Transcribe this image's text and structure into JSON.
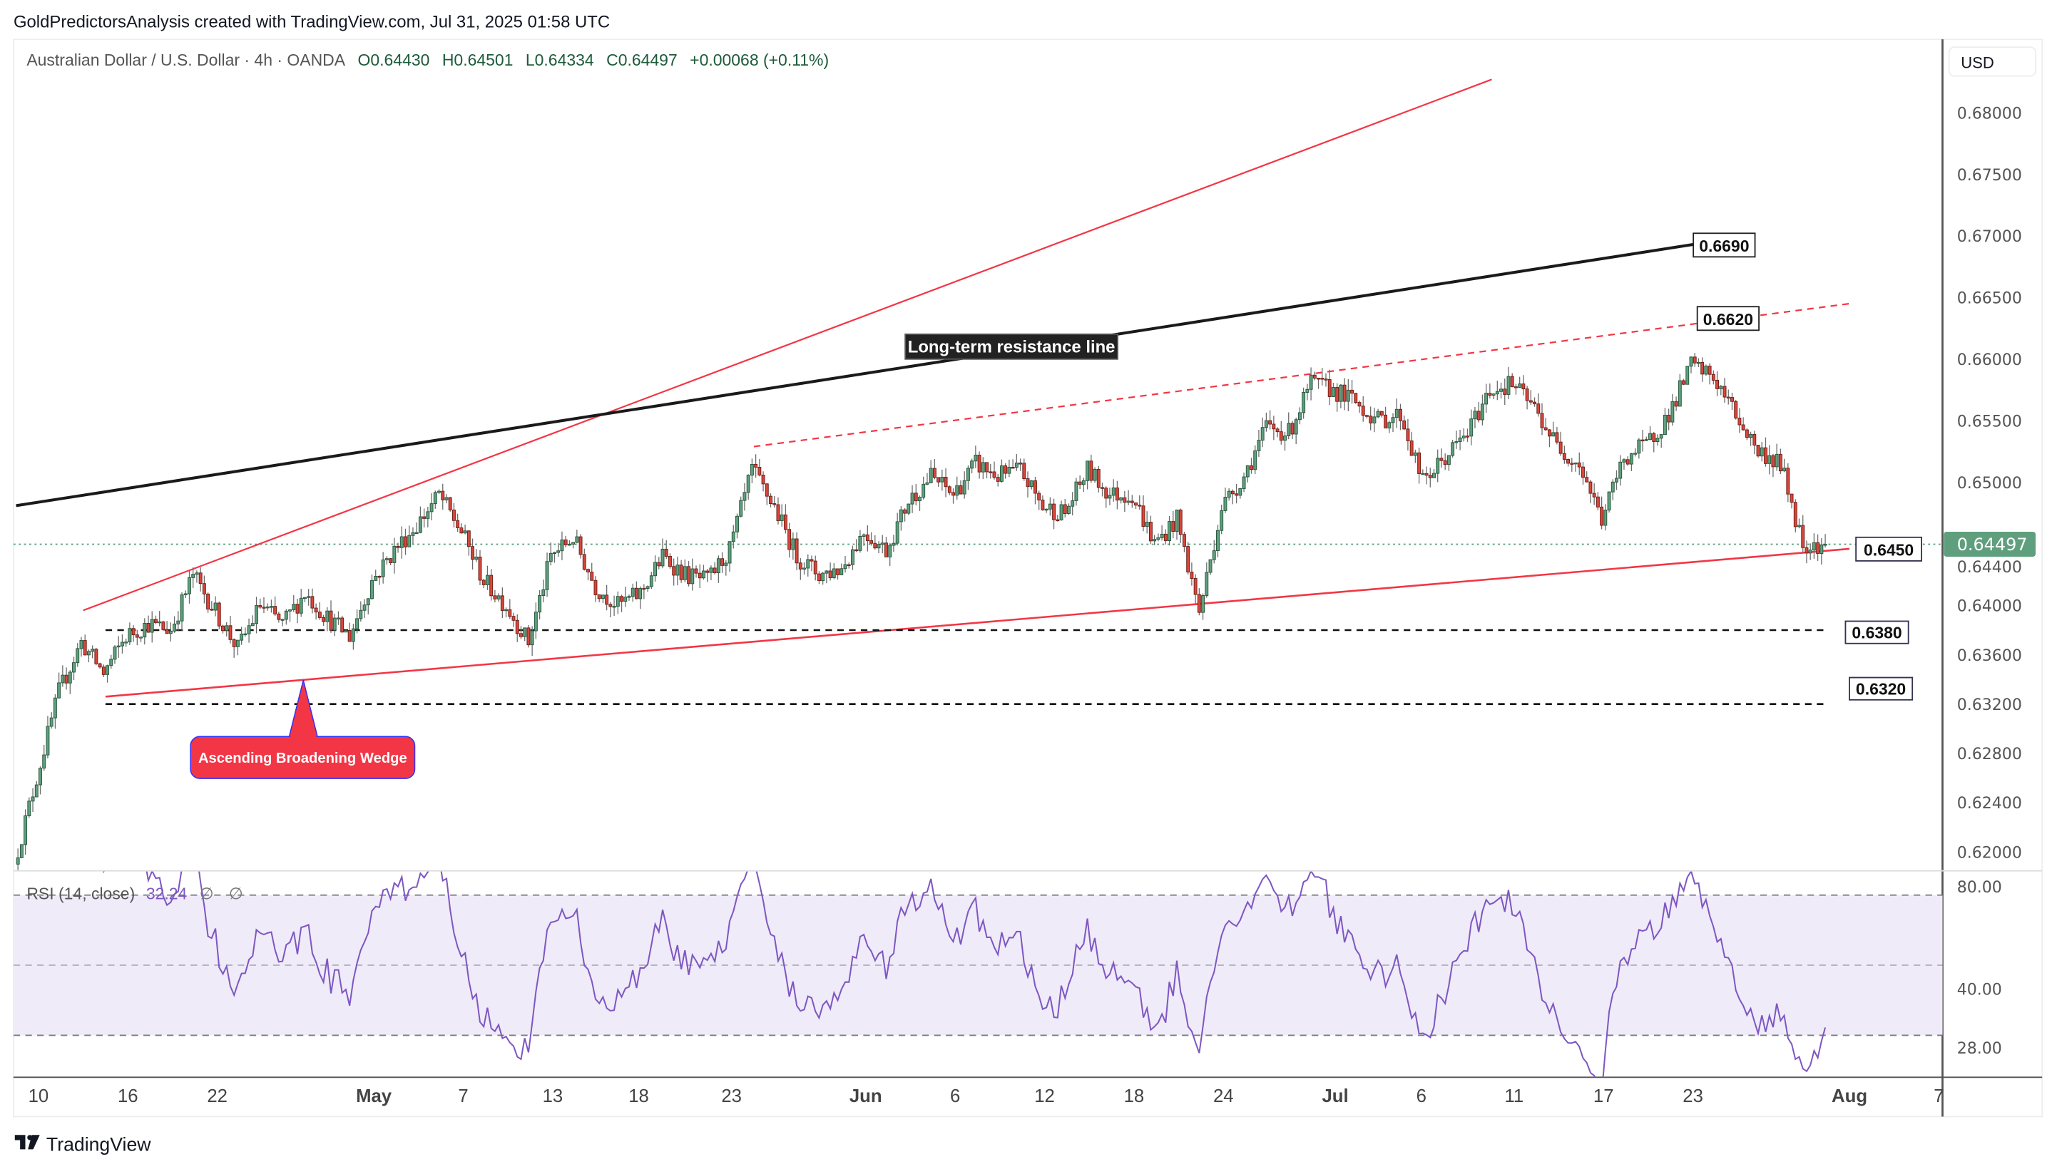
{
  "header": {
    "attribution": "GoldPredictorsAnalysis created with TradingView.com, Jul 31, 2025 01:58 UTC"
  },
  "footer": {
    "brand": "TradingView"
  },
  "legend": {
    "symbol": "Australian Dollar / U.S. Dollar · 4h · OANDA",
    "open": "O0.64430",
    "high": "H0.64501",
    "low": "L0.64334",
    "close": "C0.64497",
    "change": "+0.00068 (+0.11%)"
  },
  "rsi_legend": {
    "name": "RSI (14, close)",
    "value": "32.24",
    "extra1": "∅",
    "extra2": "∅"
  },
  "price_axis": {
    "currency": "USD",
    "ticks": [
      "0.68000",
      "0.67500",
      "0.67000",
      "0.66500",
      "0.66000",
      "0.65500",
      "0.65000",
      "0.64400",
      "0.64000",
      "0.63600",
      "0.63200",
      "0.62800",
      "0.62400",
      "0.62000"
    ],
    "current_price": "0.64497"
  },
  "rsi_axis": {
    "ticks": [
      "80.00",
      "40.00",
      "28.00"
    ]
  },
  "colors": {
    "up": "#5f9f7d",
    "up_border": "#24533a",
    "down": "#d8463b",
    "down_border": "#6a1c14",
    "rsi": "#7e57c2",
    "rsi_band": "#efebf8",
    "current": "#5f9f7d",
    "wedge": "#f23645"
  },
  "chart_data": {
    "type": "candlestick",
    "title": "Australian Dollar / U.S. Dollar · 4h · OANDA",
    "ylim": [
      0.6185,
      0.6835
    ],
    "x_ticks": [
      {
        "label": "10",
        "date": "2025-04-10"
      },
      {
        "label": "16",
        "date": "2025-04-16"
      },
      {
        "label": "22",
        "date": "2025-04-22"
      },
      {
        "label": "May",
        "date": "2025-05-01"
      },
      {
        "label": "7",
        "date": "2025-05-07"
      },
      {
        "label": "13",
        "date": "2025-05-13"
      },
      {
        "label": "18",
        "date": "2025-05-18"
      },
      {
        "label": "23",
        "date": "2025-05-23"
      },
      {
        "label": "Jun",
        "date": "2025-06-02"
      },
      {
        "label": "6",
        "date": "2025-06-06"
      },
      {
        "label": "12",
        "date": "2025-06-12"
      },
      {
        "label": "18",
        "date": "2025-06-18"
      },
      {
        "label": "24",
        "date": "2025-06-24"
      },
      {
        "label": "Jul",
        "date": "2025-07-01"
      },
      {
        "label": "6",
        "date": "2025-07-06"
      },
      {
        "label": "11",
        "date": "2025-07-11"
      },
      {
        "label": "17",
        "date": "2025-07-17"
      },
      {
        "label": "23",
        "date": "2025-07-23"
      },
      {
        "label": "Aug",
        "date": "2025-08-01"
      },
      {
        "label": "7",
        "date": "2025-08-07"
      }
    ],
    "close_path": [
      [
        "2025-04-09",
        0.619
      ],
      [
        "2025-04-10",
        0.626
      ],
      [
        "2025-04-11",
        0.633
      ],
      [
        "2025-04-14",
        0.637
      ],
      [
        "2025-04-15",
        0.6345
      ],
      [
        "2025-04-16",
        0.6375
      ],
      [
        "2025-04-17",
        0.6385
      ],
      [
        "2025-04-18",
        0.638
      ],
      [
        "2025-04-21",
        0.6425
      ],
      [
        "2025-04-22",
        0.6395
      ],
      [
        "2025-04-23",
        0.6365
      ],
      [
        "2025-04-24",
        0.64
      ],
      [
        "2025-04-25",
        0.6385
      ],
      [
        "2025-04-28",
        0.641
      ],
      [
        "2025-04-29",
        0.639
      ],
      [
        "2025-04-30",
        0.6375
      ],
      [
        "2025-05-01",
        0.642
      ],
      [
        "2025-05-02",
        0.6445
      ],
      [
        "2025-05-05",
        0.6465
      ],
      [
        "2025-05-06",
        0.649
      ],
      [
        "2025-05-07",
        0.646
      ],
      [
        "2025-05-08",
        0.642
      ],
      [
        "2025-05-09",
        0.64
      ],
      [
        "2025-05-12",
        0.637
      ],
      [
        "2025-05-13",
        0.644
      ],
      [
        "2025-05-14",
        0.6455
      ],
      [
        "2025-05-15",
        0.6415
      ],
      [
        "2025-05-16",
        0.64
      ],
      [
        "2025-05-19",
        0.641
      ],
      [
        "2025-05-20",
        0.644
      ],
      [
        "2025-05-21",
        0.6425
      ],
      [
        "2025-05-22",
        0.642
      ],
      [
        "2025-05-23",
        0.6445
      ],
      [
        "2025-05-26",
        0.651
      ],
      [
        "2025-05-27",
        0.648
      ],
      [
        "2025-05-28",
        0.644
      ],
      [
        "2025-05-29",
        0.6425
      ],
      [
        "2025-05-30",
        0.643
      ],
      [
        "2025-06-02",
        0.646
      ],
      [
        "2025-06-03",
        0.6445
      ],
      [
        "2025-06-04",
        0.6485
      ],
      [
        "2025-06-05",
        0.6505
      ],
      [
        "2025-06-06",
        0.649
      ],
      [
        "2025-06-09",
        0.6515
      ],
      [
        "2025-06-10",
        0.6505
      ],
      [
        "2025-06-11",
        0.651
      ],
      [
        "2025-06-12",
        0.648
      ],
      [
        "2025-06-13",
        0.6475
      ],
      [
        "2025-06-16",
        0.651
      ],
      [
        "2025-06-17",
        0.649
      ],
      [
        "2025-06-18",
        0.649
      ],
      [
        "2025-06-19",
        0.645
      ],
      [
        "2025-06-20",
        0.647
      ],
      [
        "2025-06-23",
        0.6395
      ],
      [
        "2025-06-24",
        0.648
      ],
      [
        "2025-06-25",
        0.6505
      ],
      [
        "2025-06-26",
        0.6545
      ],
      [
        "2025-06-27",
        0.654
      ],
      [
        "2025-06-30",
        0.658
      ],
      [
        "2025-07-01",
        0.6575
      ],
      [
        "2025-07-02",
        0.6565
      ],
      [
        "2025-07-03",
        0.655
      ],
      [
        "2025-07-04",
        0.6555
      ],
      [
        "2025-07-07",
        0.65
      ],
      [
        "2025-07-08",
        0.652
      ],
      [
        "2025-07-09",
        0.654
      ],
      [
        "2025-07-10",
        0.6575
      ],
      [
        "2025-07-11",
        0.658
      ],
      [
        "2025-07-14",
        0.656
      ],
      [
        "2025-07-15",
        0.653
      ],
      [
        "2025-07-16",
        0.6515
      ],
      [
        "2025-07-17",
        0.647
      ],
      [
        "2025-07-18",
        0.652
      ],
      [
        "2025-07-21",
        0.653
      ],
      [
        "2025-07-22",
        0.6555
      ],
      [
        "2025-07-23",
        0.6595
      ],
      [
        "2025-07-24",
        0.6585
      ],
      [
        "2025-07-25",
        0.6555
      ],
      [
        "2025-07-28",
        0.6525
      ],
      [
        "2025-07-29",
        0.6515
      ],
      [
        "2025-07-30",
        0.645
      ],
      [
        "2025-07-31",
        0.645
      ]
    ],
    "bars_per_day": 6,
    "rsi": {
      "period": 14,
      "upper": 70,
      "middle": 50,
      "lower": 30,
      "current": 32.24
    },
    "drawings": {
      "wedge_upper": {
        "from": [
          "2025-04-14",
          0.6396
        ],
        "to": [
          "2025-07-10",
          0.6827
        ]
      },
      "wedge_lower": {
        "from": [
          "2025-04-15",
          0.6326
        ],
        "to": [
          "2025-08-01",
          0.6446
        ]
      },
      "long_term_resistance": {
        "from": [
          "2025-04-09",
          0.6481
        ],
        "to": [
          "2025-07-23",
          0.6693
        ]
      },
      "upper_dashed": {
        "from": [
          "2025-05-26",
          0.6529
        ],
        "to": [
          "2025-08-01",
          0.6645
        ]
      },
      "support_1": {
        "from": [
          "2025-04-15",
          0.638
        ],
        "to": [
          "2025-07-31",
          0.638
        ]
      },
      "support_2": {
        "from": [
          "2025-04-15",
          0.632
        ],
        "to": [
          "2025-07-31",
          0.632
        ]
      }
    },
    "annotations": {
      "resistance_label": "Long-term resistance line",
      "wedge_label": "Ascending Broadening Wedge",
      "level_6690": "0.6690",
      "level_6620": "0.6620",
      "level_6450": "0.6450",
      "level_6380": "0.6380",
      "level_6320": "0.6320"
    }
  }
}
